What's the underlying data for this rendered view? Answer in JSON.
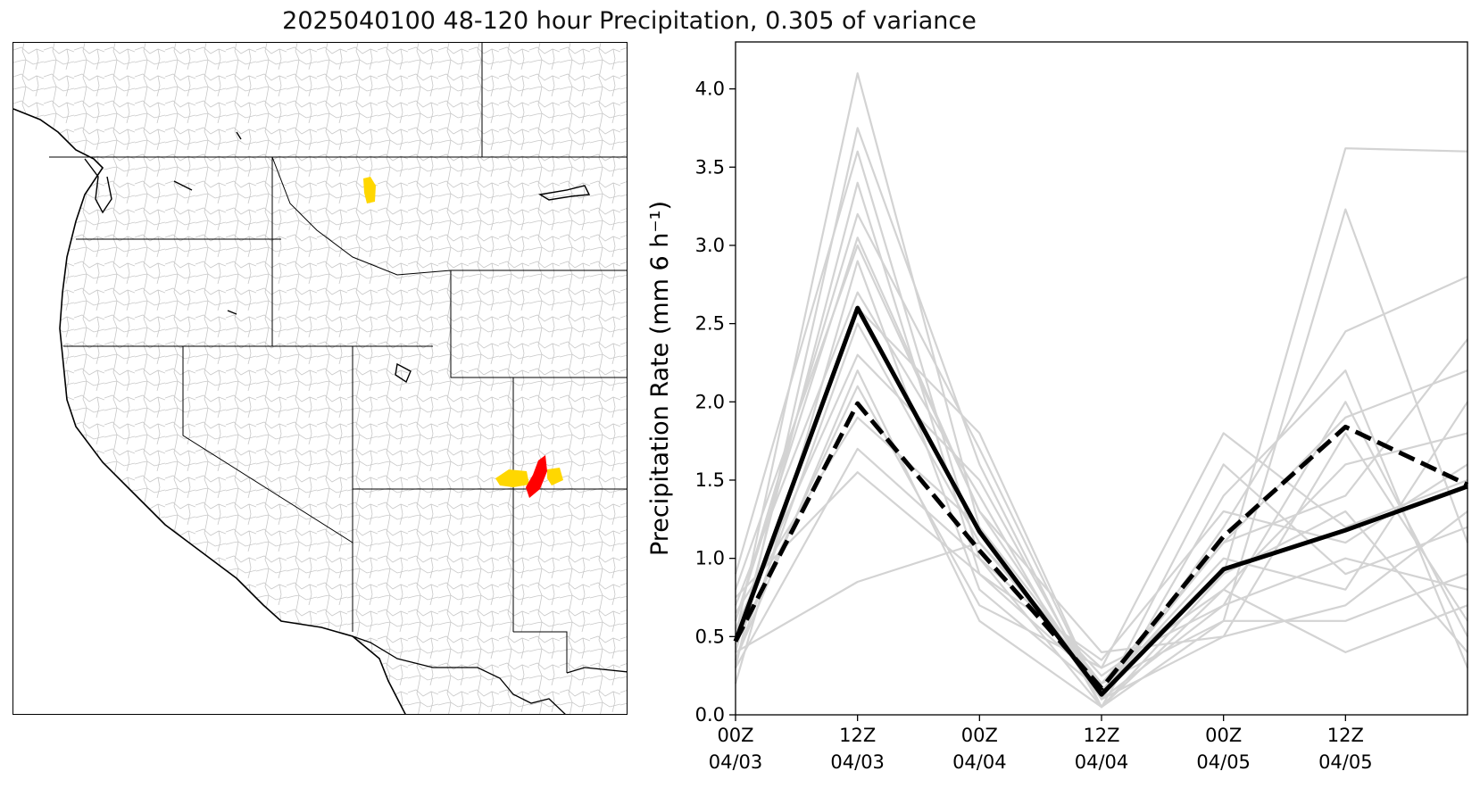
{
  "figure": {
    "title": "2025040100 48-120 hour Precipitation, 0.305 of variance"
  },
  "map": {
    "basin_fill_colors": {
      "high": "#ff0000",
      "moderate": "#ffd700"
    }
  },
  "chart_data": {
    "type": "line",
    "xlabel": "",
    "ylabel": "Precipitation Rate (mm 6 h⁻¹)",
    "ylim": [
      0,
      4.3
    ],
    "xlim": [
      0,
      18
    ],
    "yticks": [
      "0.0",
      "0.5",
      "1.0",
      "1.5",
      "2.0",
      "2.5",
      "3.0",
      "3.5",
      "4.0"
    ],
    "xticks": [
      {
        "x": 0,
        "lines": [
          "00Z",
          "04/03"
        ]
      },
      {
        "x": 3,
        "lines": [
          "12Z",
          "04/03"
        ]
      },
      {
        "x": 6,
        "lines": [
          "00Z",
          "04/04"
        ]
      },
      {
        "x": 9,
        "lines": [
          "12Z",
          "04/04"
        ]
      },
      {
        "x": 12,
        "lines": [
          "00Z",
          "04/05"
        ]
      },
      {
        "x": 15,
        "lines": [
          "12Z",
          "04/05"
        ]
      }
    ],
    "x": [
      0,
      3,
      6,
      9,
      12,
      15,
      18
    ],
    "ensemble_color": "#d3d3d3",
    "ensemble_members": [
      [
        0.5,
        4.1,
        1.2,
        0.1,
        0.7,
        1.0,
        0.8
      ],
      [
        0.3,
        3.75,
        1.6,
        0.05,
        0.9,
        3.62,
        3.6
      ],
      [
        0.9,
        3.6,
        1.0,
        0.3,
        1.8,
        1.2,
        1.5
      ],
      [
        0.4,
        3.4,
        0.9,
        0.2,
        0.6,
        3.23,
        1.1
      ],
      [
        0.6,
        3.2,
        1.7,
        0.1,
        1.2,
        2.45,
        2.8
      ],
      [
        0.8,
        3.0,
        1.3,
        0.4,
        0.5,
        1.8,
        0.6
      ],
      [
        0.2,
        2.9,
        0.8,
        0.15,
        1.0,
        0.8,
        2.0
      ],
      [
        0.7,
        2.7,
        1.4,
        0.05,
        1.4,
        2.2,
        0.3
      ],
      [
        0.35,
        2.5,
        1.1,
        0.25,
        0.8,
        1.6,
        1.8
      ],
      [
        0.55,
        2.3,
        1.5,
        0.1,
        1.6,
        0.9,
        1.2
      ],
      [
        0.45,
        2.1,
        0.7,
        0.3,
        0.7,
        2.0,
        0.5
      ],
      [
        0.65,
        1.9,
        1.2,
        0.2,
        1.1,
        1.4,
        2.4
      ],
      [
        0.3,
        1.7,
        1.0,
        0.05,
        0.6,
        0.6,
        0.9
      ],
      [
        0.75,
        1.55,
        0.9,
        0.35,
        1.3,
        1.1,
        1.6
      ],
      [
        0.4,
        0.85,
        1.1,
        0.2,
        0.9,
        1.3,
        0.4
      ],
      [
        0.5,
        2.6,
        1.8,
        0.1,
        0.5,
        0.7,
        1.3
      ],
      [
        0.6,
        3.05,
        1.3,
        0.15,
        1.1,
        1.9,
        2.2
      ],
      [
        0.35,
        2.2,
        0.6,
        0.05,
        0.8,
        0.4,
        0.7
      ]
    ],
    "series": [
      {
        "values": [
          0.47,
          2.6,
          1.17,
          0.13,
          0.93,
          1.18,
          1.46
        ],
        "color": "#000000",
        "style": "solid"
      },
      {
        "values": [
          0.47,
          1.99,
          1.05,
          0.17,
          1.14,
          1.84,
          1.47
        ],
        "color": "#000000",
        "style": "dashed"
      }
    ],
    "grid": false,
    "legend": "none"
  }
}
